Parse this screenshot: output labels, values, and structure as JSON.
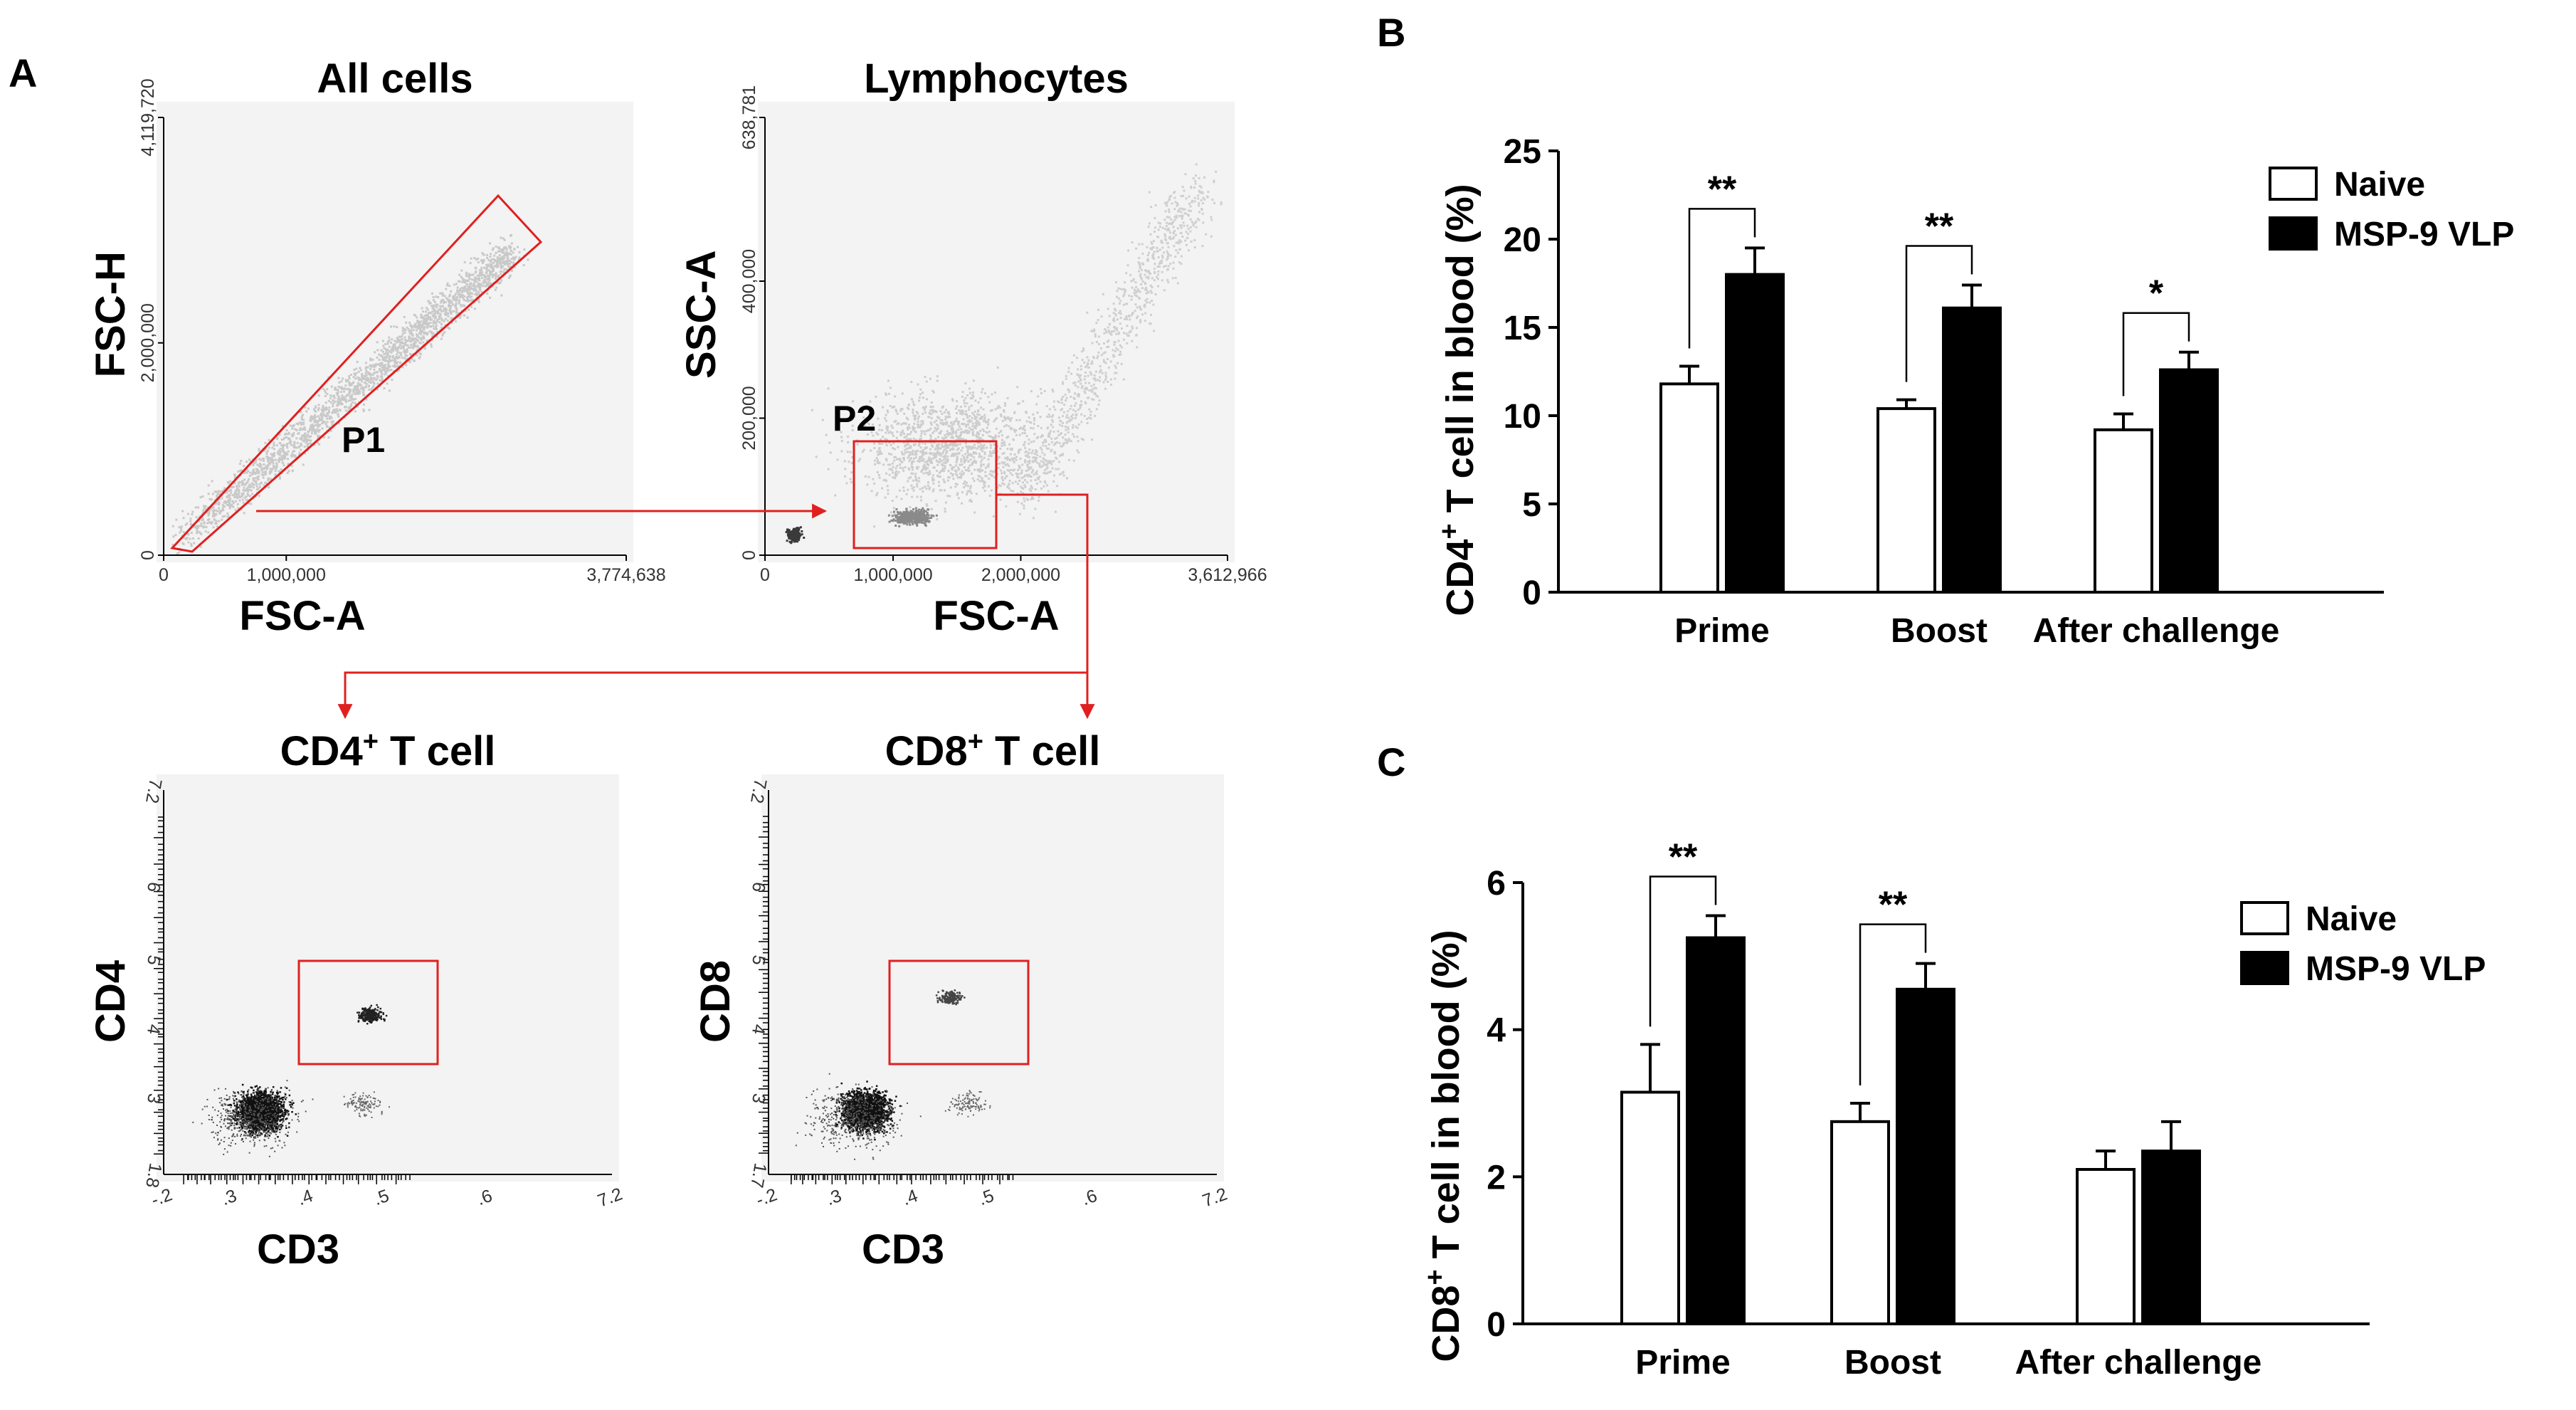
{
  "figure": {
    "panel_a": {
      "label": "A",
      "plots": [
        {
          "title": "All cells",
          "xlabel": "FSC-A",
          "ylabel": "FSC-H",
          "xticks": [
            "0",
            "1,000,000",
            "3,774,638"
          ],
          "yticks": [
            "0",
            "2,000,000",
            "4,119,720"
          ],
          "gate": "P1"
        },
        {
          "title": "Lymphocytes",
          "xlabel": "FSC-A",
          "ylabel": "SSC-A",
          "xticks": [
            "0",
            "1,000,000",
            "2,000,000",
            "3,612,966"
          ],
          "yticks": [
            "0",
            "200,000",
            "400,000",
            "638,781"
          ],
          "gate": "P2"
        },
        {
          "title": "CD4",
          "title_sup": "+",
          "title_rest": " T cell",
          "xlabel": "CD3",
          "ylabel": "CD4",
          "xticks": [
            "-.2",
            ".3",
            ".4",
            ".5",
            ".6",
            "7.2"
          ],
          "yticks": [
            "1.8",
            "3",
            "4",
            "5",
            "6",
            "7.2"
          ]
        },
        {
          "title": "CD8",
          "title_sup": "+",
          "title_rest": " T cell",
          "xlabel": "CD3",
          "ylabel": "CD8",
          "xticks": [
            "-.2",
            ".3",
            ".4",
            ".5",
            ".6",
            "7.2"
          ],
          "yticks": [
            "1.7",
            "3",
            "4",
            "5",
            "6",
            "7.2"
          ]
        }
      ]
    },
    "panel_b_label": "B",
    "panel_c_label": "C"
  },
  "chart_data": [
    {
      "type": "bar",
      "panel": "B",
      "ylabel_main": "CD4",
      "ylabel_sup": "+",
      "ylabel_rest": " T cell in blood (%)",
      "categories": [
        "Prime",
        "Boost",
        "After challenge"
      ],
      "ylim": [
        0,
        25
      ],
      "yticks": [
        0,
        5,
        10,
        15,
        20,
        25
      ],
      "series": [
        {
          "name": "Naive",
          "fill": "#ffffff",
          "values": [
            11.8,
            10.4,
            9.2
          ],
          "errors": [
            1.0,
            0.5,
            0.9
          ]
        },
        {
          "name": "MSP-9 VLP",
          "fill": "#000000",
          "values": [
            18.0,
            16.1,
            12.6
          ],
          "errors": [
            1.5,
            1.3,
            1.0
          ]
        }
      ],
      "significance": [
        "**",
        "**",
        "*"
      ],
      "legend": "top-right"
    },
    {
      "type": "bar",
      "panel": "C",
      "ylabel_main": "CD8",
      "ylabel_sup": "+",
      "ylabel_rest": " T cell in blood (%)",
      "categories": [
        "Prime",
        "Boost",
        "After challenge"
      ],
      "ylim": [
        0,
        6
      ],
      "yticks": [
        0,
        2,
        4,
        6
      ],
      "series": [
        {
          "name": "Naive",
          "fill": "#ffffff",
          "values": [
            3.15,
            2.75,
            2.1
          ],
          "errors": [
            0.65,
            0.25,
            0.25
          ]
        },
        {
          "name": "MSP-9 VLP",
          "fill": "#000000",
          "values": [
            5.25,
            4.55,
            2.35
          ],
          "errors": [
            0.3,
            0.35,
            0.4
          ]
        }
      ],
      "significance": [
        "**",
        "**",
        ""
      ],
      "legend": "top-right"
    }
  ]
}
